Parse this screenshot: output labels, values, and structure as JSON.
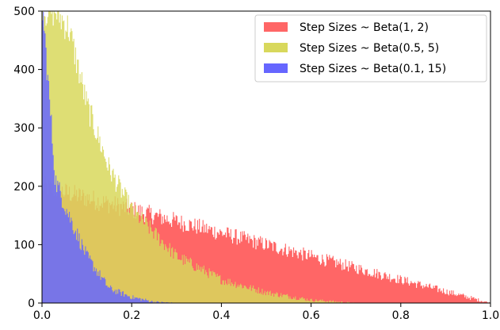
{
  "chart_data": {
    "type": "histogram",
    "xlim": [
      0,
      1
    ],
    "ylim": [
      0,
      500
    ],
    "x_ticks": [
      "0.0",
      "0.2",
      "0.4",
      "0.6",
      "0.8",
      "1.0"
    ],
    "y_ticks": [
      "0",
      "100",
      "200",
      "300",
      "400",
      "500"
    ],
    "grid": false,
    "legend_position": "top-right",
    "bin_width": 0.002,
    "series": [
      {
        "name": "Step Sizes ~ Beta(1, 2)",
        "color": "#ff6666",
        "shape": "beta(1,2) density",
        "approx_profile": [
          [
            0.0,
            200
          ],
          [
            0.2,
            160
          ],
          [
            0.4,
            120
          ],
          [
            0.6,
            80
          ],
          [
            0.8,
            40
          ],
          [
            1.0,
            0
          ]
        ]
      },
      {
        "name": "Step Sizes ~ Beta(0.5, 5)",
        "color": "#d8d85c",
        "shape": "beta(0.5,5) density",
        "approx_profile": [
          [
            0.03,
            500
          ],
          [
            0.06,
            470
          ],
          [
            0.1,
            340
          ],
          [
            0.15,
            230
          ],
          [
            0.2,
            160
          ],
          [
            0.3,
            80
          ],
          [
            0.4,
            40
          ],
          [
            0.5,
            18
          ],
          [
            0.6,
            5
          ],
          [
            0.7,
            0
          ]
        ]
      },
      {
        "name": "Step Sizes ~ Beta(0.1, 15)",
        "color": "#6666ff",
        "shape": "beta(0.1,15) density",
        "approx_profile": [
          [
            0.002,
            500
          ],
          [
            0.03,
            210
          ],
          [
            0.06,
            150
          ],
          [
            0.1,
            80
          ],
          [
            0.15,
            25
          ],
          [
            0.2,
            10
          ],
          [
            0.25,
            2
          ],
          [
            0.3,
            0
          ]
        ]
      }
    ]
  }
}
